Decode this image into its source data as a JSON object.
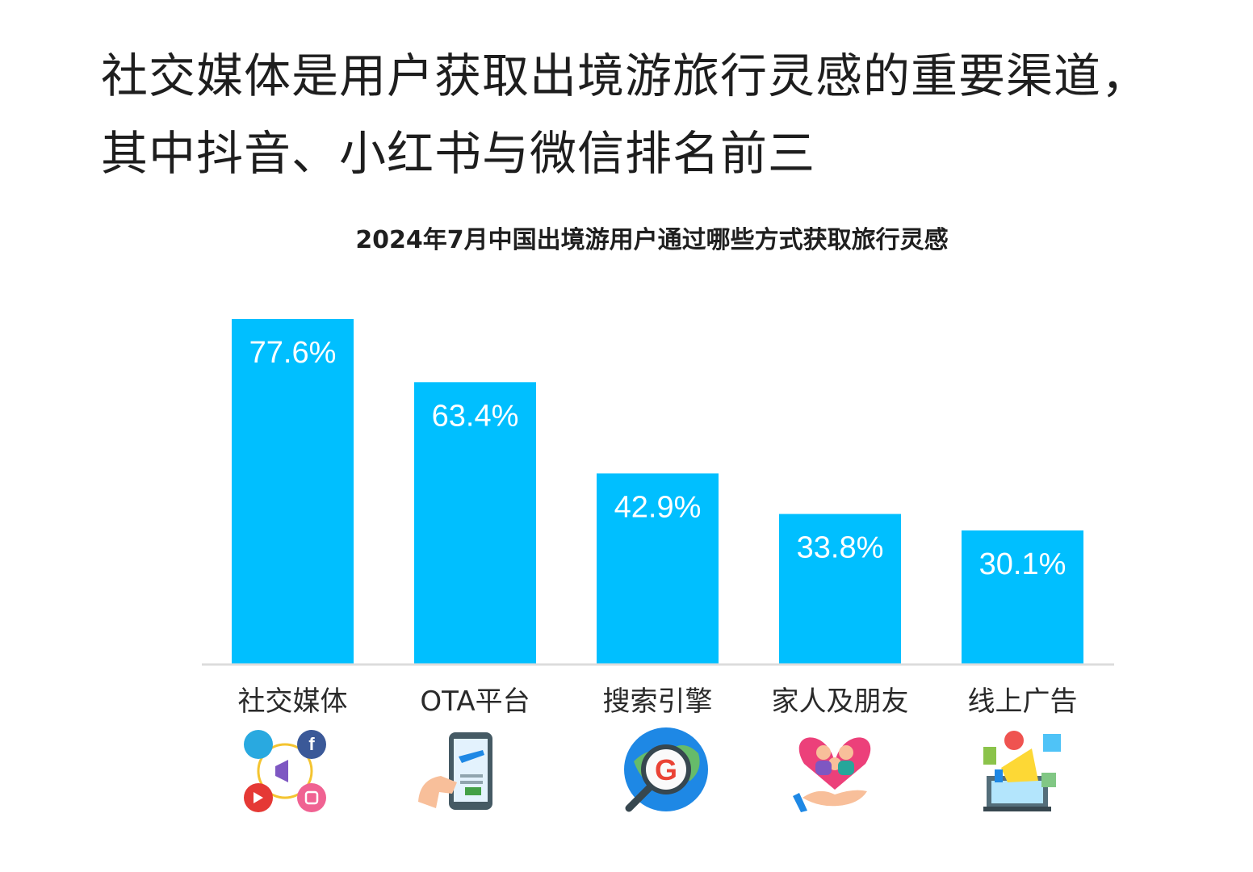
{
  "headline": {
    "line1": "社交媒体是用户获取出境游旅行灵感的重要渠道，",
    "line2": "其中抖音、小红书与微信排名前三"
  },
  "chart_data": {
    "type": "bar",
    "title": "2024年7月中国出境游用户通过哪些方式获取旅行灵感",
    "categories": [
      "社交媒体",
      "OTA平台",
      "搜索引擎",
      "家人及朋友",
      "线上广告"
    ],
    "values": [
      77.6,
      63.4,
      42.9,
      33.8,
      30.1
    ],
    "value_labels": [
      "77.6%",
      "63.4%",
      "42.9%",
      "33.8%",
      "30.1%"
    ],
    "ylim": [
      0,
      80
    ],
    "grid": false,
    "bar_color": "#00BFFF",
    "icons": [
      "social-media-icon",
      "phone-booking-icon",
      "search-engine-icon",
      "family-heart-icon",
      "online-ad-icon"
    ]
  }
}
